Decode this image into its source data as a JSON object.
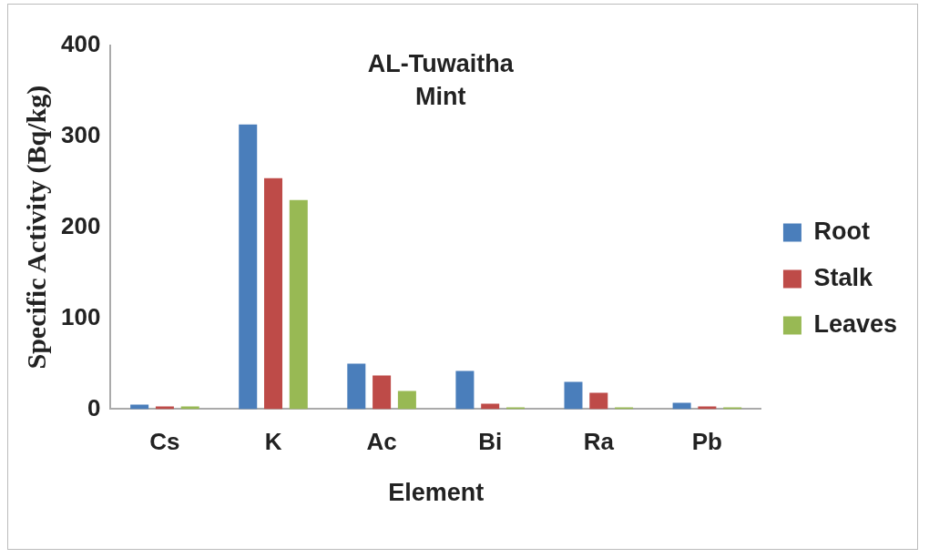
{
  "chart_data": {
    "type": "bar",
    "title": "AL-Tuwaitha Mint",
    "xlabel": "Element",
    "ylabel": "Specific Activity (Bq/kg)",
    "categories": [
      "Cs",
      "K",
      "Ac",
      "Bi",
      "Ra",
      "Pb"
    ],
    "series": [
      {
        "name": "Root",
        "color": "#4a7ebb",
        "values": [
          5,
          313,
          50,
          42,
          30,
          7
        ]
      },
      {
        "name": "Stalk",
        "color": "#be4b48",
        "values": [
          3,
          254,
          37,
          6,
          18,
          3
        ]
      },
      {
        "name": "Leaves",
        "color": "#98b954",
        "values": [
          3,
          230,
          20,
          2,
          2,
          2
        ]
      }
    ],
    "ylim": [
      0,
      400
    ],
    "yticks": [
      0,
      100,
      200,
      300,
      400
    ],
    "grid": false,
    "legend": "right"
  }
}
